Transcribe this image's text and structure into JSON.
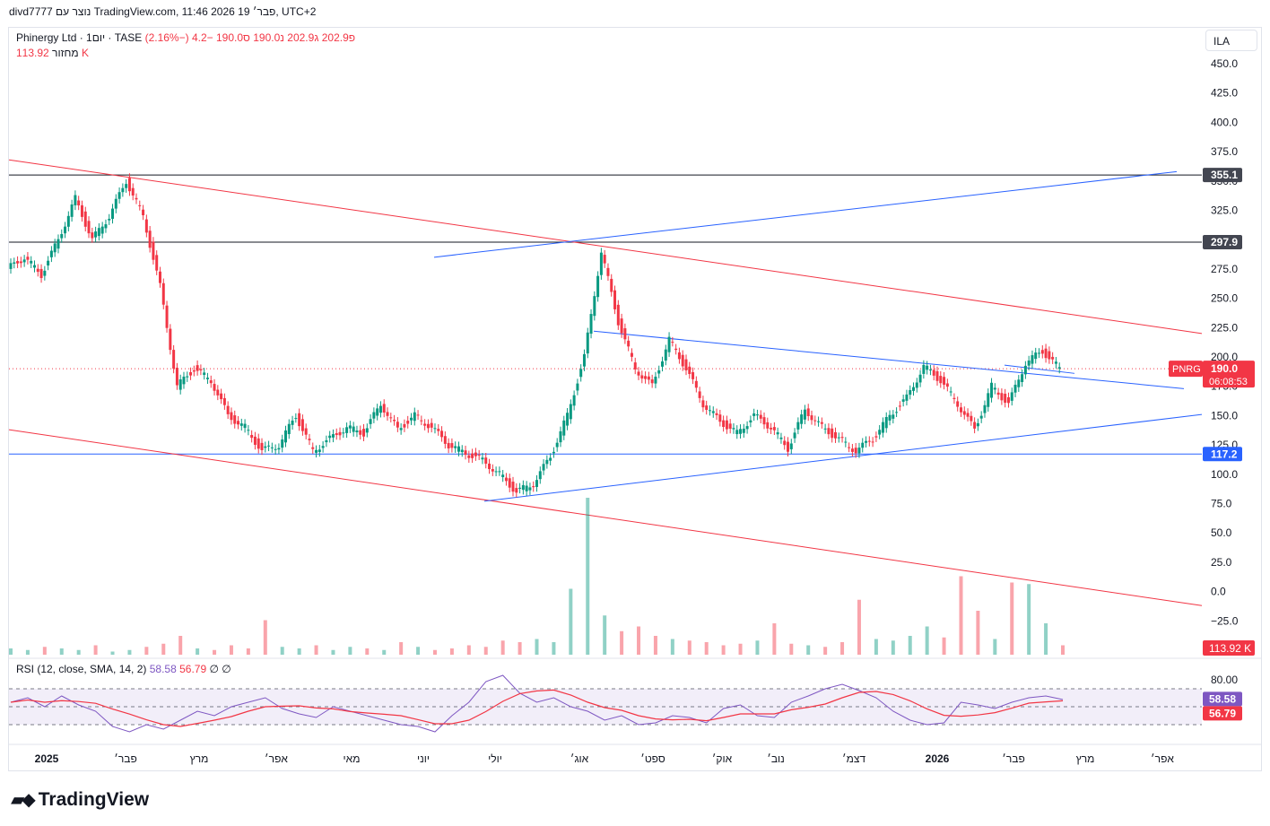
{
  "header": {
    "created_by": "divd7777 נוצר עם TradingView.com, 11:46 2026 פבר׳ 19, UTC+2"
  },
  "legend": {
    "symbol": "Phinergy Ltd · 1יום · TASE",
    "open": "פ202.9",
    "high": "ג202.9",
    "low": "נ190.0",
    "close": "ס190.0",
    "change": "−4.2 (−2.16%)",
    "volume_label": "מחזור",
    "volume_value": "113.92 K"
  },
  "rsi_legend": {
    "title": "RSI (12, close, SMA, 14, 2)",
    "rsi": "58.58",
    "ma": "56.79",
    "extra": "∅ ∅"
  },
  "scale_button": "ILA",
  "brand": "TradingView",
  "colors": {
    "up": "#089981",
    "down": "#f23645",
    "trendline": "#2962ff",
    "channel": "#f23645",
    "rsi": "#7e57c2",
    "rsi_ma": "#f23645"
  },
  "chart_data": {
    "type": "candlestick",
    "symbol": "PNRG",
    "exchange": "TASE",
    "timeframe": "1D",
    "y_axis_ticks": [
      "450.0",
      "425.0",
      "400.0",
      "375.0",
      "350.0",
      "325.0",
      "300.0",
      "275.0",
      "250.0",
      "225.0",
      "200.0",
      "175.0",
      "150.0",
      "125.0",
      "100.0",
      "75.0",
      "50.0",
      "25.0",
      "0.0",
      "−25.0"
    ],
    "ylim": [
      -50,
      475
    ],
    "x_axis_ticks": [
      "2025",
      "פבר׳",
      "מרץ",
      "אפר׳",
      "מאי",
      "יוני",
      "יולי",
      "אוג׳",
      "ספט׳",
      "אוק׳",
      "נוב׳",
      "דצמ׳",
      "2026",
      "פבר׳",
      "מרץ",
      "אפר׳"
    ],
    "price_badges": [
      {
        "label": "355.1",
        "value": 355.1
      },
      {
        "label": "297.9",
        "value": 297.9
      },
      {
        "label": "117.2",
        "value": 117.2
      }
    ],
    "last_price": {
      "symbol": "PNRG",
      "value": "190.0",
      "countdown": "06:08:53"
    },
    "volume_badge": "113.92 K",
    "horizontal_lines": [
      355.1,
      297.9,
      117.2
    ],
    "price_path": [
      [
        0,
        275
      ],
      [
        1,
        285
      ],
      [
        2,
        270
      ],
      [
        3,
        300
      ],
      [
        4,
        335
      ],
      [
        5,
        300
      ],
      [
        6,
        320
      ],
      [
        7,
        350
      ],
      [
        8,
        320
      ],
      [
        9,
        260
      ],
      [
        10,
        175
      ],
      [
        11,
        190
      ],
      [
        12,
        180
      ],
      [
        13,
        150
      ],
      [
        14,
        140
      ],
      [
        15,
        120
      ],
      [
        16,
        125
      ],
      [
        17,
        150
      ],
      [
        18,
        120
      ],
      [
        19,
        130
      ],
      [
        20,
        140
      ],
      [
        21,
        135
      ],
      [
        22,
        160
      ],
      [
        23,
        138
      ],
      [
        24,
        150
      ],
      [
        25,
        140
      ],
      [
        26,
        125
      ],
      [
        27,
        118
      ],
      [
        28,
        112
      ],
      [
        29,
        100
      ],
      [
        30,
        85
      ],
      [
        31,
        92
      ],
      [
        32,
        115
      ],
      [
        33,
        150
      ],
      [
        34,
        200
      ],
      [
        35,
        290
      ],
      [
        36,
        230
      ],
      [
        37,
        190
      ],
      [
        38,
        175
      ],
      [
        39,
        215
      ],
      [
        40,
        190
      ],
      [
        41,
        160
      ],
      [
        42,
        145
      ],
      [
        43,
        135
      ],
      [
        44,
        150
      ],
      [
        45,
        140
      ],
      [
        46,
        122
      ],
      [
        47,
        155
      ],
      [
        48,
        140
      ],
      [
        49,
        130
      ],
      [
        50,
        120
      ],
      [
        51,
        130
      ],
      [
        52,
        150
      ],
      [
        53,
        165
      ],
      [
        54,
        192
      ],
      [
        55,
        180
      ],
      [
        56,
        160
      ],
      [
        57,
        138
      ],
      [
        58,
        175
      ],
      [
        59,
        160
      ],
      [
        60,
        195
      ],
      [
        61,
        205
      ],
      [
        62,
        190
      ]
    ],
    "volume_bars_relative": [
      4,
      3,
      5,
      4,
      3,
      6,
      2,
      3,
      5,
      7,
      12,
      4,
      3,
      6,
      4,
      22,
      5,
      4,
      6,
      3,
      5,
      4,
      3,
      8,
      5,
      3,
      4,
      6,
      5,
      9,
      8,
      10,
      8,
      42,
      100,
      25,
      15,
      18,
      12,
      10,
      9,
      8,
      6,
      7,
      9,
      20,
      7,
      6,
      5,
      8,
      35,
      10,
      9,
      12,
      18,
      11,
      50,
      28,
      10,
      46,
      45,
      20,
      6
    ],
    "rsi": {
      "params": "12, close, SMA, 14, 2",
      "value": 58.58,
      "ma": 56.79,
      "ticks": [
        "80.00"
      ],
      "bands": [
        70,
        50,
        30
      ],
      "path": [
        55,
        60,
        50,
        62,
        52,
        45,
        28,
        22,
        30,
        25,
        35,
        45,
        40,
        50,
        55,
        60,
        48,
        42,
        38,
        50,
        45,
        40,
        35,
        30,
        28,
        22,
        40,
        55,
        78,
        85,
        65,
        55,
        60,
        50,
        45,
        35,
        40,
        30,
        32,
        40,
        38,
        32,
        48,
        52,
        40,
        38,
        55,
        62,
        70,
        75,
        68,
        60,
        45,
        35,
        30,
        32,
        55,
        52,
        48,
        55,
        60,
        62,
        58
      ]
    }
  }
}
